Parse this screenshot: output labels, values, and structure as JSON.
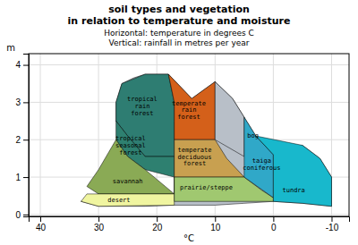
{
  "chart_data": {
    "type": "polygon",
    "title": [
      "soil types and vegetation",
      "in relation to temperature and moisture"
    ],
    "subtitle": [
      "Horizontal: temperature in degrees C",
      "Vertical: rainfall in metres per year"
    ],
    "xlabel": "°C",
    "ylabel": "m",
    "xlim": [
      42,
      -13
    ],
    "ylim": [
      -0.05,
      4.3
    ],
    "xticks": [
      40,
      30,
      20,
      10,
      0,
      -10
    ],
    "yticks": [
      0,
      1,
      2,
      3,
      4
    ],
    "grid": true,
    "series": [
      {
        "color": "#b8bfc8",
        "x": [
          30,
          22,
          17,
          10,
          5,
          0,
          -5,
          -10,
          -10,
          -8,
          -5,
          0,
          3,
          5,
          7,
          10,
          14,
          18,
          22,
          24,
          26,
          27,
          27,
          25,
          22,
          17,
          17,
          22,
          30,
          33,
          30
        ],
        "y": [
          0.22,
          0.22,
          0.25,
          0.25,
          0.3,
          0.35,
          0.3,
          0.22,
          1.0,
          1.5,
          1.85,
          1.6,
          2.1,
          2.6,
          3.1,
          3.55,
          3.1,
          3.75,
          3.75,
          3.65,
          3.5,
          3.0,
          2.5,
          2.1,
          1.55,
          1.55,
          0.55,
          0.55,
          0.55,
          0.35,
          0.22
        ]
      },
      {
        "label": "tropical\nrain\nforest",
        "label_x": 22.5,
        "label_y": 2.9,
        "color": "#2e7d72",
        "x": [
          17,
          22,
          25,
          27,
          27,
          26,
          22,
          18,
          17,
          17,
          17
        ],
        "y": [
          1.55,
          1.55,
          2.1,
          2.5,
          3.0,
          3.5,
          3.75,
          3.75,
          3.0,
          2.5,
          1.55
        ]
      },
      {
        "label": "tropical\nseasonal\nforest",
        "label_x": 24.5,
        "label_y": 1.85,
        "color": "#2e8070",
        "x": [
          17,
          17,
          22,
          25,
          27,
          27,
          25,
          22,
          17,
          17
        ],
        "y": [
          0.55,
          1.55,
          1.55,
          2.1,
          2.5,
          2.0,
          1.55,
          1.2,
          1.0,
          0.55
        ]
      },
      {
        "label": "savannah",
        "label_x": 25.0,
        "label_y": 0.9,
        "color": "#8aaa55",
        "x": [
          17,
          22,
          25,
          27,
          30,
          32,
          30,
          17
        ],
        "y": [
          0.55,
          1.2,
          1.55,
          2.0,
          1.2,
          0.75,
          0.55,
          0.55
        ]
      },
      {
        "label": "desert",
        "label_x": 26.5,
        "label_y": 0.38,
        "color": "#f0f5a0",
        "x": [
          17,
          17,
          30,
          32,
          33,
          30,
          17
        ],
        "y": [
          0.25,
          0.55,
          0.55,
          0.55,
          0.35,
          0.22,
          0.25
        ]
      },
      {
        "label": "temperate\nrain\nforest",
        "label_x": 14.5,
        "label_y": 2.8,
        "color": "#d4601a",
        "x": [
          10,
          17,
          17,
          17,
          18,
          14,
          10,
          10
        ],
        "y": [
          2.0,
          2.0,
          2.5,
          3.0,
          3.75,
          3.1,
          3.55,
          2.0
        ]
      },
      {
        "label": "temperate\ndeciduous\nforest",
        "label_x": 13.5,
        "label_y": 1.55,
        "color": "#c8a050",
        "x": [
          5,
          17,
          17,
          10,
          8,
          5
        ],
        "y": [
          1.0,
          1.0,
          2.0,
          2.0,
          1.5,
          1.0
        ]
      },
      {
        "label": "prairie/steppe",
        "label_x": 11.5,
        "label_y": 0.72,
        "color": "#a0c870",
        "x": [
          0,
          17,
          17,
          5,
          2,
          0,
          0
        ],
        "y": [
          0.35,
          0.35,
          1.0,
          1.0,
          0.65,
          0.45,
          0.35
        ]
      },
      {
        "label": "bog",
        "label_x": 3.5,
        "label_y": 2.1,
        "color": "#b8bfc8",
        "x": [
          5,
          10,
          10,
          7,
          5,
          5
        ],
        "y": [
          1.55,
          2.0,
          3.55,
          3.1,
          2.6,
          1.55
        ]
      },
      {
        "label": "taiga\nconiferous",
        "label_x": 2.0,
        "label_y": 1.35,
        "color": "#30a8c8",
        "x": [
          0,
          5,
          5,
          5,
          3,
          0,
          0
        ],
        "y": [
          0.45,
          1.0,
          1.55,
          2.6,
          2.1,
          1.6,
          0.45
        ]
      },
      {
        "label": "tundra",
        "label_x": -3.5,
        "label_y": 0.65,
        "color": "#18b8cc",
        "x": [
          -10,
          -5,
          0,
          0,
          3,
          -5,
          -8,
          -10,
          -10
        ],
        "y": [
          0.22,
          0.3,
          0.35,
          1.6,
          2.1,
          1.85,
          1.5,
          1.0,
          0.22
        ]
      }
    ]
  }
}
